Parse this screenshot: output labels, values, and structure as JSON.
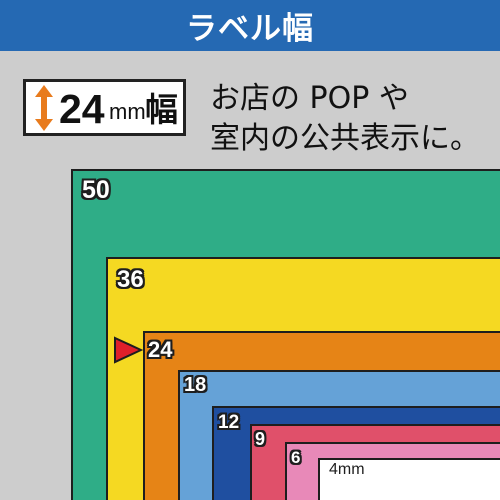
{
  "header": {
    "title": "ラベル幅"
  },
  "width_indicator": {
    "number": "24",
    "unit": "mm",
    "suffix": "幅"
  },
  "description": {
    "line1": "お店の POP や",
    "line2": "室内の公共表示に。"
  },
  "tapes": [
    {
      "label": "50",
      "color": "#2fad87"
    },
    {
      "label": "36",
      "color": "#f5d922"
    },
    {
      "label": "24",
      "color": "#e68416"
    },
    {
      "label": "18",
      "color": "#65a2d7"
    },
    {
      "label": "12",
      "color": "#1f4fa0"
    },
    {
      "label": "9",
      "color": "#e0506a"
    },
    {
      "label": "6",
      "color": "#e889b8"
    },
    {
      "label": "4mm",
      "color": "#ffffff"
    }
  ],
  "colors": {
    "header_bg": "#2569b3",
    "background": "#cdcdcd",
    "marker": "#e0202a",
    "arrow": "#e87b1d"
  }
}
